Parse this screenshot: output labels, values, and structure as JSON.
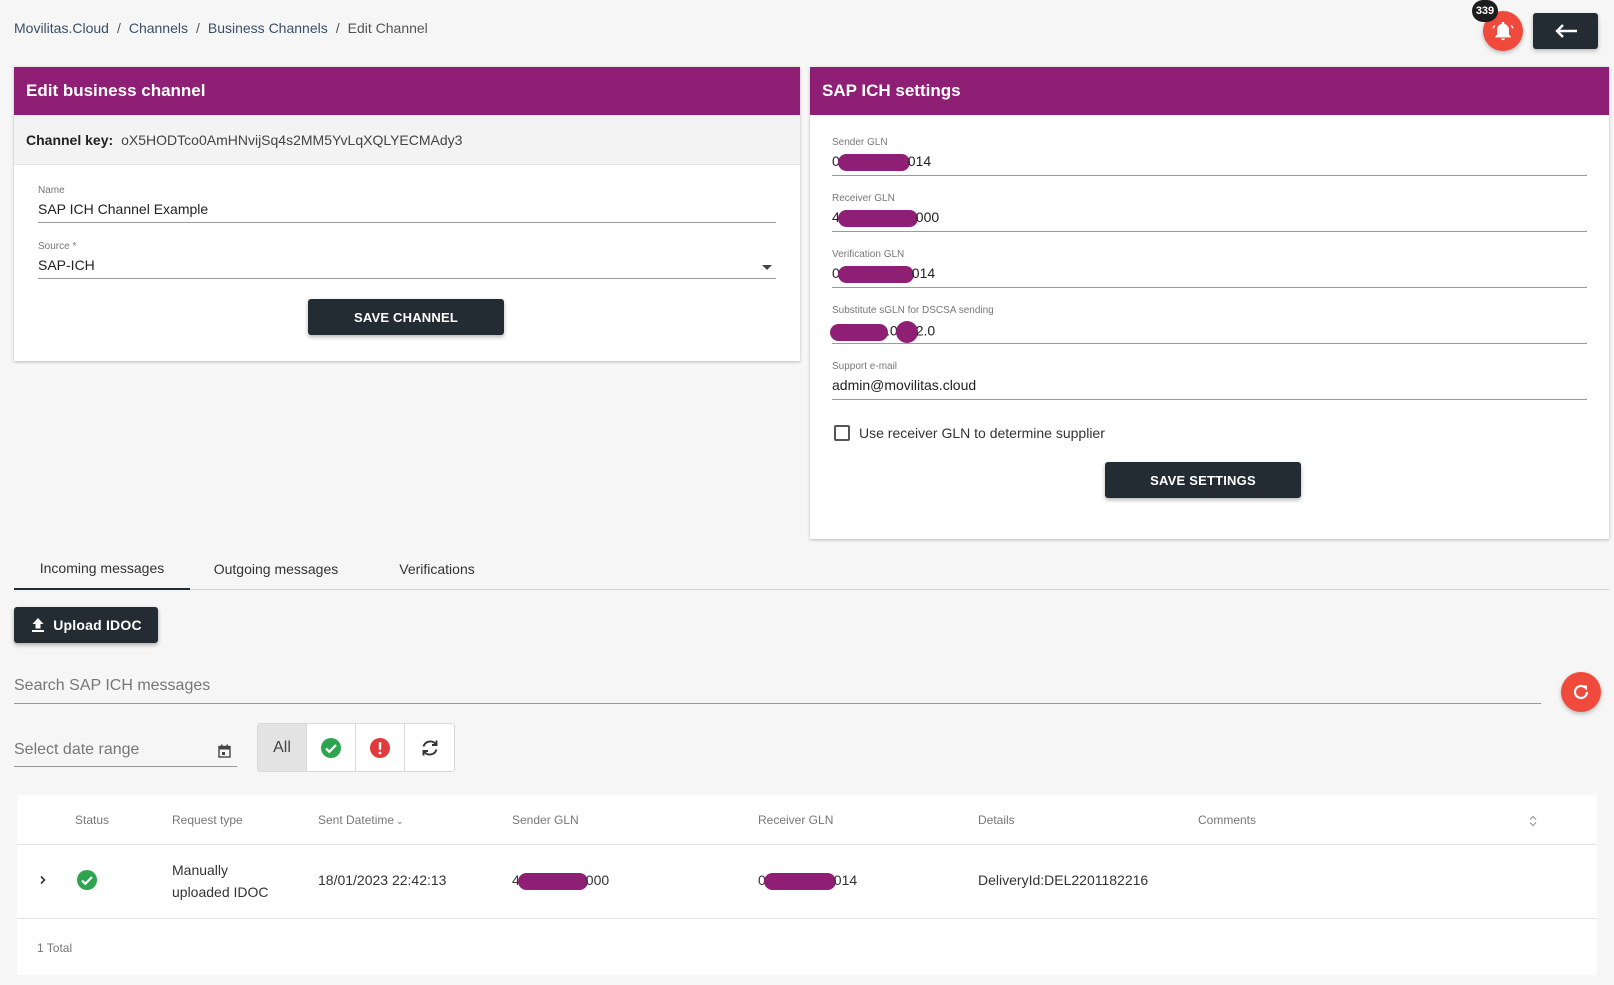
{
  "breadcrumb": [
    "Movilitas.Cloud",
    "Channels",
    "Business Channels",
    "Edit Channel"
  ],
  "notifications": {
    "count": "339"
  },
  "edit_channel": {
    "title": "Edit business channel",
    "key_label": "Channel key:",
    "key_value": "oX5HODTco0AmHNvijSq4s2MM5YvLqXQLYECMAdy3",
    "name_label": "Name",
    "name_value": "SAP ICH Channel Example",
    "source_label": "Source *",
    "source_value": "SAP-ICH",
    "save_label": "SAVE CHANNEL"
  },
  "sap_settings": {
    "title": "SAP ICH settings",
    "sender_gln_label": "Sender GLN",
    "sender_gln_prefix": "0",
    "sender_gln_suffix": "014",
    "receiver_gln_label": "Receiver GLN",
    "receiver_gln_prefix": "4",
    "receiver_gln_suffix": "000",
    "verification_gln_label": "Verification GLN",
    "verification_gln_prefix": "0",
    "verification_gln_suffix": "014",
    "substitute_label": "Substitute sGLN for DSCSA sending",
    "substitute_mid": ".0",
    "substitute_suffix": "2.0",
    "support_email_label": "Support e-mail",
    "support_email_value": "admin@movilitas.cloud",
    "checkbox_label": "Use receiver GLN to determine supplier",
    "checkbox_checked": false,
    "save_label": "SAVE SETTINGS"
  },
  "tabs": [
    "Incoming messages",
    "Outgoing messages",
    "Verifications"
  ],
  "upload_label": "Upload IDOC",
  "search_placeholder": "Search SAP ICH messages",
  "date_placeholder": "Select date range",
  "filters": {
    "all_label": "All"
  },
  "table": {
    "headers": [
      "Status",
      "Request type",
      "Sent Datetime",
      "Sender GLN",
      "Receiver GLN",
      "Details",
      "Comments"
    ],
    "rows": [
      {
        "status": "success",
        "request_type_line1": "Manually",
        "request_type_line2": "uploaded IDOC",
        "sent_datetime": "18/01/2023 22:42:13",
        "sender_gln_prefix": "4",
        "sender_gln_suffix": "000",
        "receiver_gln_prefix": "0",
        "receiver_gln_suffix": "014",
        "details": "DeliveryId:DEL2201182216"
      }
    ],
    "total": "1 Total"
  },
  "colors": {
    "brand": "#8e1f74",
    "dark": "#232b33",
    "accent": "#ef4a3c",
    "success": "#2ea44f",
    "error": "#e23a3a"
  },
  "icons": [
    "bell-icon",
    "arrow-left-icon",
    "upload-icon",
    "refresh-icon",
    "calendar-icon",
    "check-circle-icon",
    "error-circle-icon",
    "sync-icon",
    "chevron-right-icon",
    "sort-icon"
  ]
}
